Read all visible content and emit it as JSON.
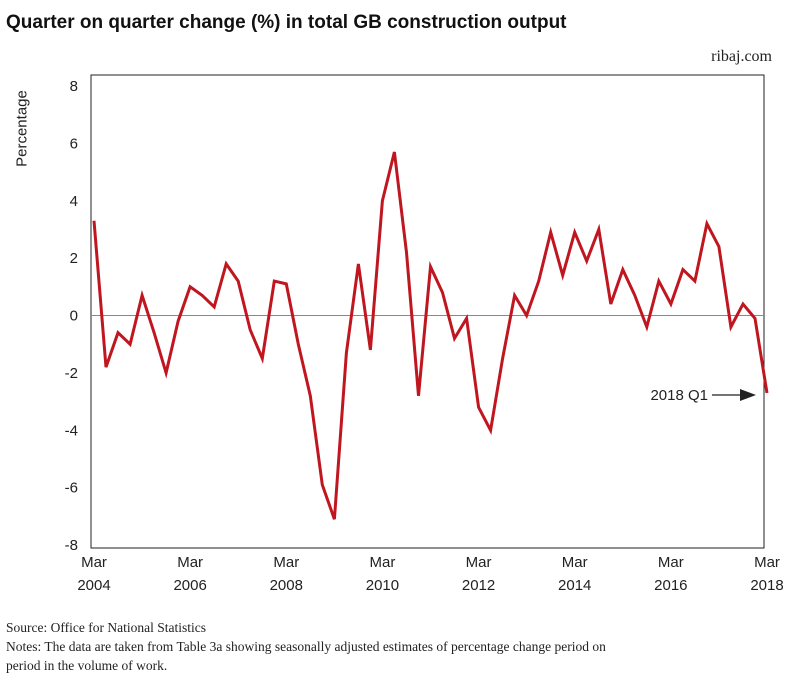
{
  "header": {
    "title": "Quarter on quarter change (%) in total GB construction output",
    "brand": "ribaj.com"
  },
  "footer": {
    "source": "Source: Office for National Statistics",
    "notes": "Notes: The data are taken from Table 3a showing seasonally adjusted estimates of percentage change period on period in the volume of work."
  },
  "colors": {
    "line": "#c0161f",
    "axis": "#222222",
    "zero_line": "#888888"
  },
  "chart_data": {
    "type": "line",
    "title": "Quarter on quarter change (%) in total GB construction output",
    "ylabel": "Percentage",
    "xlabel": "",
    "ylim": [
      -8,
      8
    ],
    "xlim": [
      2004.17,
      2018.17
    ],
    "grid": false,
    "y_ticks": [
      "8",
      "6",
      "4",
      "2",
      "0",
      "-2",
      "-4",
      "-6",
      "-8"
    ],
    "y_tick_values": [
      8,
      6,
      4,
      2,
      0,
      -2,
      -4,
      -6,
      -8
    ],
    "x_ticks": [
      {
        "month": "Mar",
        "year": "2004",
        "value": 2004.17
      },
      {
        "month": "Mar",
        "year": "2006",
        "value": 2006.17
      },
      {
        "month": "Mar",
        "year": "2008",
        "value": 2008.17
      },
      {
        "month": "Mar",
        "year": "2010",
        "value": 2010.17
      },
      {
        "month": "Mar",
        "year": "2012",
        "value": 2012.17
      },
      {
        "month": "Mar",
        "year": "2014",
        "value": 2014.17
      },
      {
        "month": "Mar",
        "year": "2016",
        "value": 2016.17
      },
      {
        "month": "Mar",
        "year": "2018",
        "value": 2018.17
      }
    ],
    "annotation": {
      "text": "2018 Q1"
    },
    "series": [
      {
        "x": [
          2004.17,
          2004.42,
          2004.67,
          2004.92,
          2005.17,
          2005.42,
          2005.67,
          2005.92,
          2006.17,
          2006.42,
          2006.67,
          2006.92,
          2007.17,
          2007.42,
          2007.67,
          2007.92,
          2008.17,
          2008.42,
          2008.67,
          2008.92,
          2009.17,
          2009.42,
          2009.67,
          2009.92,
          2010.17,
          2010.42,
          2010.67,
          2010.92,
          2011.17,
          2011.42,
          2011.67,
          2011.92,
          2012.17,
          2012.42,
          2012.67,
          2012.92,
          2013.17,
          2013.42,
          2013.67,
          2013.92,
          2014.17,
          2014.42,
          2014.67,
          2014.92,
          2015.17,
          2015.42,
          2015.67,
          2015.92,
          2016.17,
          2016.42,
          2016.67,
          2016.92,
          2017.17,
          2017.42,
          2017.67,
          2017.92
        ],
        "values": [
          3.3,
          -1.8,
          -0.6,
          -1.0,
          0.7,
          -0.6,
          -2.0,
          -0.2,
          1.0,
          0.7,
          0.3,
          1.8,
          1.2,
          -0.5,
          -1.5,
          1.2,
          1.1,
          -1.0,
          -2.8,
          -5.9,
          -7.1,
          -1.3,
          1.8,
          -1.2,
          4.0,
          5.7,
          2.2,
          -2.8,
          1.7,
          0.8,
          -0.8,
          -0.1,
          -3.2,
          -4.0,
          -1.5,
          0.7,
          0.0,
          1.2,
          2.9,
          1.4,
          2.9,
          1.9,
          3.0,
          0.4,
          1.6,
          0.7,
          -0.4,
          1.2,
          0.4,
          1.6,
          1.2,
          3.2,
          2.4,
          -0.4,
          0.4,
          -0.1
        ]
      }
    ],
    "last_point": {
      "x": 2018.17,
      "value": -2.7
    }
  }
}
